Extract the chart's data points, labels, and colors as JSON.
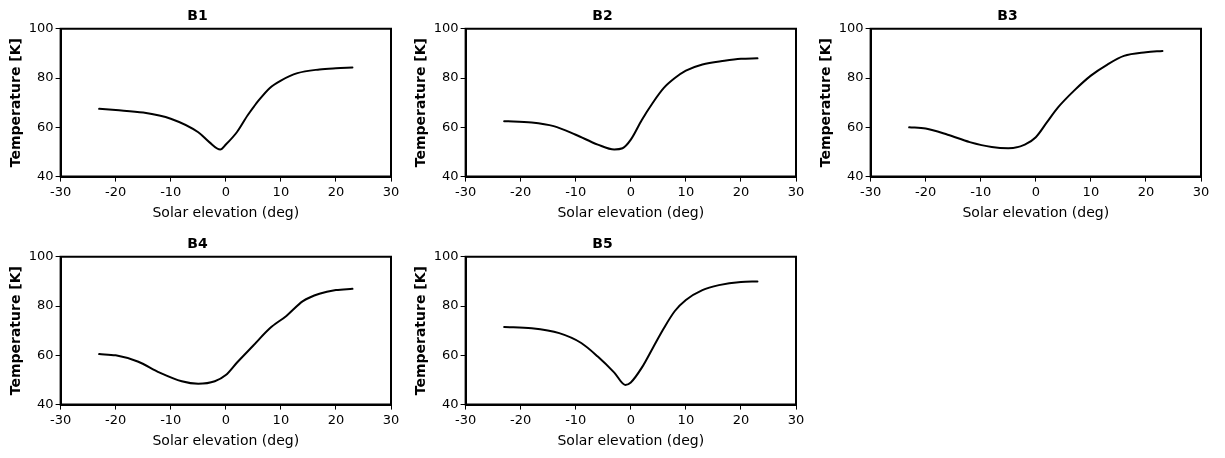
{
  "chart_data": [
    {
      "type": "line",
      "title": "B1",
      "xlabel": "Solar elevation (deg)",
      "ylabel": "Temperature [K]",
      "xlim": [
        -30,
        30
      ],
      "xticks": [
        -30,
        -20,
        -10,
        0,
        10,
        20,
        30
      ],
      "ylim": [
        40,
        100
      ],
      "yticks": [
        40,
        60,
        80,
        100
      ],
      "grid": false,
      "legend": false,
      "marker": "none",
      "line_style": "solid",
      "series": [
        {
          "color": "#000000",
          "x": [
            -23,
            -20,
            -15,
            -10,
            -5,
            -3,
            -1,
            0,
            2,
            4,
            6,
            8,
            10,
            13,
            17,
            20,
            23
          ],
          "values": [
            67.5,
            67,
            66,
            63.5,
            58,
            54,
            51,
            53,
            58,
            65,
            71,
            76,
            79,
            82,
            83.5,
            84,
            84.3
          ]
        }
      ]
    },
    {
      "type": "line",
      "title": "B2",
      "xlabel": "Solar elevation (deg)",
      "ylabel": "Temperature [K]",
      "xlim": [
        -30,
        30
      ],
      "xticks": [
        -30,
        -20,
        -10,
        0,
        10,
        20,
        30
      ],
      "ylim": [
        40,
        100
      ],
      "yticks": [
        40,
        60,
        80,
        100
      ],
      "grid": false,
      "legend": false,
      "marker": "none",
      "line_style": "solid",
      "series": [
        {
          "color": "#000000",
          "x": [
            -23,
            -18,
            -14,
            -10,
            -6,
            -3,
            -1.5,
            0,
            2,
            4,
            6,
            8,
            10,
            13,
            17,
            20,
            23
          ],
          "values": [
            62.5,
            62,
            60.5,
            57,
            53,
            51,
            51.5,
            55,
            63,
            70,
            76,
            80,
            83,
            85.5,
            87,
            87.8,
            88
          ]
        }
      ]
    },
    {
      "type": "line",
      "title": "B3",
      "xlabel": "Solar elevation (deg)",
      "ylabel": "Temperature [K]",
      "xlim": [
        -30,
        30
      ],
      "xticks": [
        -30,
        -20,
        -10,
        0,
        10,
        20,
        30
      ],
      "ylim": [
        40,
        100
      ],
      "yticks": [
        40,
        60,
        80,
        100
      ],
      "grid": false,
      "legend": false,
      "marker": "none",
      "line_style": "solid",
      "series": [
        {
          "color": "#000000",
          "x": [
            -23,
            -20,
            -16,
            -12,
            -8,
            -5,
            -2,
            0,
            2,
            4,
            7,
            10,
            13,
            16,
            20,
            23
          ],
          "values": [
            60,
            59.5,
            57,
            54,
            52,
            51.5,
            53,
            56,
            62,
            68,
            75,
            81,
            85.5,
            89,
            90.5,
            91
          ]
        }
      ]
    },
    {
      "type": "line",
      "title": "B4",
      "xlabel": "Solar elevation (deg)",
      "ylabel": "Temperature [K]",
      "xlim": [
        -30,
        30
      ],
      "xticks": [
        -30,
        -20,
        -10,
        0,
        10,
        20,
        30
      ],
      "ylim": [
        40,
        100
      ],
      "yticks": [
        40,
        60,
        80,
        100
      ],
      "grid": false,
      "legend": false,
      "marker": "none",
      "line_style": "solid",
      "series": [
        {
          "color": "#000000",
          "x": [
            -23,
            -20,
            -16,
            -12,
            -8,
            -5,
            -2,
            0,
            2,
            5,
            8,
            11,
            14,
            17,
            20,
            23
          ],
          "values": [
            60.5,
            60,
            57.5,
            53,
            49.5,
            48.5,
            49.5,
            52,
            57,
            64,
            71,
            76,
            82,
            85,
            86.5,
            87
          ]
        }
      ]
    },
    {
      "type": "line",
      "title": "B5",
      "xlabel": "Solar elevation (deg)",
      "ylabel": "Temperature [K]",
      "xlim": [
        -30,
        30
      ],
      "xticks": [
        -30,
        -20,
        -10,
        0,
        10,
        20,
        30
      ],
      "ylim": [
        40,
        100
      ],
      "yticks": [
        40,
        60,
        80,
        100
      ],
      "grid": false,
      "legend": false,
      "marker": "none",
      "line_style": "solid",
      "series": [
        {
          "color": "#000000",
          "x": [
            -23,
            -18,
            -13,
            -9,
            -6,
            -3,
            -1,
            0,
            2,
            4,
            6,
            8,
            10,
            13,
            16,
            20,
            23
          ],
          "values": [
            71.5,
            71,
            69,
            65,
            59.5,
            53,
            48,
            49,
            55,
            63,
            71,
            78,
            82.5,
            86.5,
            88.5,
            89.8,
            90
          ]
        }
      ]
    }
  ]
}
